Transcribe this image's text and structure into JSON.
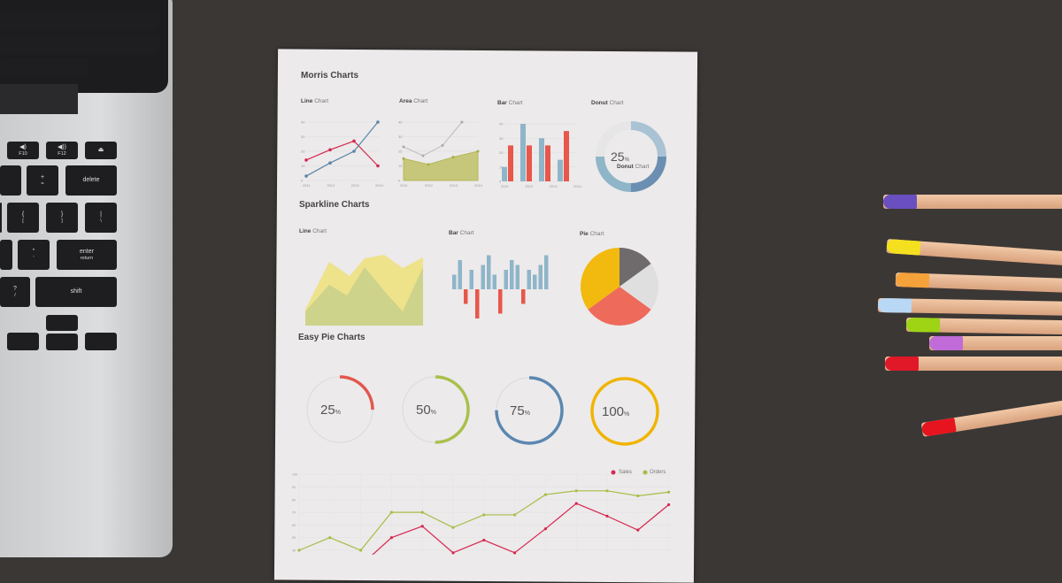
{
  "paper": {
    "morris_title": "Morris Charts",
    "morris": {
      "line": {
        "bold": "Line",
        "rest": "Chart",
        "years": [
          "2011",
          "2012",
          "2013",
          "2014"
        ],
        "yticks": [
          "0",
          "10",
          "20",
          "30",
          "40"
        ],
        "series": [
          {
            "color": "#d7264f",
            "values": [
              14,
              21,
              27,
              10
            ]
          },
          {
            "color": "#5a86a8",
            "values": [
              3,
              12,
              20,
              40
            ]
          }
        ]
      },
      "area": {
        "bold": "Area",
        "rest": "Chart",
        "years": [
          "2011",
          "2012",
          "2013",
          "2014"
        ],
        "yticks": [
          "0",
          "15",
          "25",
          "30",
          "40"
        ],
        "series": [
          {
            "color": "#bcc05a",
            "values": [
              15,
              11,
              16,
              20
            ]
          },
          {
            "color": "#bbbbbb",
            "values": [
              23,
              17,
              24,
              40
            ]
          }
        ]
      },
      "bar": {
        "bold": "Bar",
        "rest": "Chart",
        "years": [
          "2011",
          "2012",
          "2013",
          "2014"
        ],
        "yticks": [
          "0",
          "10",
          "20",
          "30",
          "40"
        ],
        "series": [
          {
            "color": "#8fb5c8",
            "values": [
              10,
              40,
              30,
              15
            ]
          },
          {
            "color": "#e8574a",
            "values": [
              25,
              25,
              25,
              35
            ]
          }
        ]
      },
      "donut": {
        "bold": "Donut",
        "rest": "Chart",
        "value": "25",
        "unit": "%",
        "label_bold": "Donut",
        "label_rest": "Chart"
      }
    },
    "sparkline_title": "Sparkline Charts",
    "sparkline": {
      "line": {
        "bold": "Line",
        "rest": "Chart"
      },
      "bar": {
        "bold": "Bar",
        "rest": "Chart",
        "values": [
          3,
          6,
          -3,
          4,
          -6,
          5,
          7,
          3,
          -5,
          4,
          6,
          5,
          -3,
          4,
          3,
          5,
          7
        ]
      },
      "pie": {
        "bold": "Pie",
        "rest": "Chart",
        "slices": [
          {
            "value": 35,
            "color": "#f2b90f"
          },
          {
            "value": 30,
            "color": "#ee6a5a"
          },
          {
            "value": 20,
            "color": "#e0dfe0"
          },
          {
            "value": 15,
            "color": "#6f6b6c"
          }
        ]
      }
    },
    "easy_pie_title": "Easy Pie Charts",
    "easy_pies": [
      {
        "value": "25",
        "unit": "%",
        "pct": 25,
        "color": "#e2574c"
      },
      {
        "value": "50",
        "unit": "%",
        "pct": 50,
        "color": "#a9c04a"
      },
      {
        "value": "75",
        "unit": "%",
        "pct": 75,
        "color": "#5b87b0"
      },
      {
        "value": "100",
        "unit": "%",
        "pct": 100,
        "color": "#f0b400"
      }
    ],
    "bottom_chart": {
      "yticks": [
        "100",
        "90",
        "80",
        "70",
        "60",
        "50",
        "40"
      ],
      "legend": [
        {
          "label": "Sales",
          "color": "#d7264f"
        },
        {
          "label": "Orders",
          "color": "#a6be45"
        }
      ],
      "orders": [
        40,
        50,
        40,
        70,
        70,
        58,
        68,
        68,
        84,
        87,
        87,
        83,
        86
      ],
      "sales": [
        30,
        20,
        28,
        50,
        59,
        38,
        48,
        38,
        57,
        77,
        67,
        56,
        76
      ]
    }
  },
  "laptop": {
    "keys": [
      {
        "l": "◀)",
        "s": "F10"
      },
      {
        "l": "◀))",
        "s": "F12"
      },
      {
        "l": "⏏",
        "s": ""
      },
      {
        "l": "+",
        "s": "="
      },
      {
        "l": "delete",
        "s": ""
      },
      {
        "l": "{",
        "s": "["
      },
      {
        "l": "}",
        "s": "]"
      },
      {
        "l": "|",
        "s": "\\"
      },
      {
        "l": "\"",
        "s": "'"
      },
      {
        "l": "enter",
        "s": "return"
      },
      {
        "l": "?",
        "s": "/"
      },
      {
        "l": "shift",
        "s": ""
      }
    ]
  },
  "pencil_colors": [
    "#6a4fc0",
    "#f5e020",
    "#f6a23a",
    "#b8d8f5",
    "#9ed414",
    "#c06bd8",
    "#e01828",
    "#e5141f"
  ]
}
